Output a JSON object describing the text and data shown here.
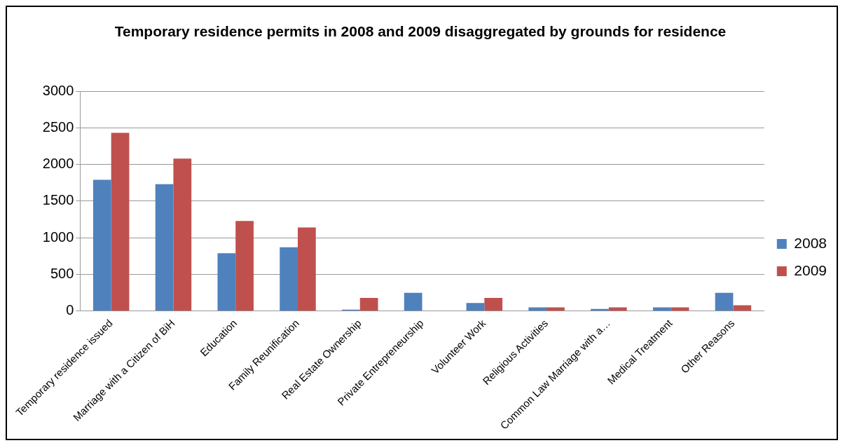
{
  "chart_data": {
    "type": "bar",
    "title": "Temporary residence permits  in 2008 and 2009 disaggregated by grounds for residence",
    "categories": [
      "Temporary residence issued",
      "Marriage with a Citizen of BiH",
      "Education",
      "Family Reunification",
      "Real Estate Ownership",
      "Private Entrepreneurship",
      "Volunteer Work",
      "Religious Activities",
      "Common Law Marriage with a…",
      "Medical Treatment",
      "Other Reasons"
    ],
    "series": [
      {
        "name": "2008",
        "color": "#4f81bd",
        "values": [
          1790,
          1730,
          790,
          870,
          20,
          250,
          110,
          50,
          30,
          50,
          250
        ]
      },
      {
        "name": "2009",
        "color": "#c0504d",
        "values": [
          2430,
          2080,
          1230,
          1140,
          180,
          0,
          180,
          50,
          50,
          50,
          80
        ]
      }
    ],
    "ylim": [
      0,
      3000
    ],
    "yticks": [
      0,
      500,
      1000,
      1500,
      2000,
      2500,
      3000
    ],
    "grid": "y",
    "legend": "right"
  }
}
